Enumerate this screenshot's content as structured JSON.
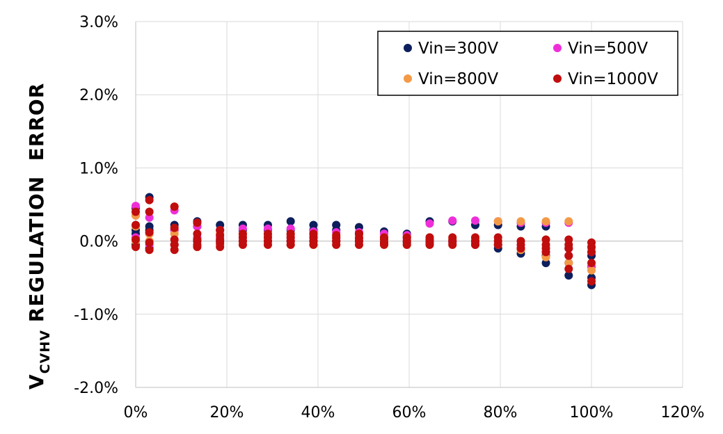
{
  "chart_data": {
    "type": "scatter",
    "ylabel_main": "V",
    "ylabel_sub": "CVHV",
    "ylabel_rest": " REGULATION  ERROR",
    "xlabel": "",
    "xlim": [
      0,
      120
    ],
    "ylim": [
      -2.0,
      3.0
    ],
    "grid": true,
    "legend_position": "top-right",
    "x_ticks": [
      {
        "value": 0,
        "label": "0%"
      },
      {
        "value": 20,
        "label": "20%"
      },
      {
        "value": 40,
        "label": "40%"
      },
      {
        "value": 60,
        "label": "60%"
      },
      {
        "value": 80,
        "label": "80%"
      },
      {
        "value": 100,
        "label": "100%"
      },
      {
        "value": 120,
        "label": "120%"
      }
    ],
    "y_ticks": [
      {
        "value": 3.0,
        "label": "3.0%"
      },
      {
        "value": 2.0,
        "label": "2.0%"
      },
      {
        "value": 1.0,
        "label": "1.0%"
      },
      {
        "value": 0.0,
        "label": "0.0%"
      },
      {
        "value": -1.0,
        "label": "-1.0%"
      },
      {
        "value": -2.0,
        "label": "-2.0%"
      }
    ],
    "series": [
      {
        "name": "Vin=300V",
        "color": "#0d1f5c",
        "points": [
          [
            0,
            0.15
          ],
          [
            0,
            0.1
          ],
          [
            0,
            -0.05
          ],
          [
            0,
            0.45
          ],
          [
            3,
            0.6
          ],
          [
            3,
            0.2
          ],
          [
            3,
            0.15
          ],
          [
            3,
            -0.1
          ],
          [
            8.5,
            0.22
          ],
          [
            8.5,
            0.15
          ],
          [
            8.5,
            -0.05
          ],
          [
            13.5,
            0.27
          ],
          [
            13.5,
            0.2
          ],
          [
            13.5,
            0.0
          ],
          [
            18.5,
            0.22
          ],
          [
            18.5,
            0.15
          ],
          [
            18.5,
            0.0
          ],
          [
            23.5,
            0.22
          ],
          [
            23.5,
            0.15
          ],
          [
            23.5,
            0.0
          ],
          [
            29,
            0.22
          ],
          [
            29,
            0.15
          ],
          [
            29,
            0.0
          ],
          [
            34,
            0.27
          ],
          [
            34,
            0.15
          ],
          [
            34,
            0.0
          ],
          [
            39,
            0.22
          ],
          [
            39,
            0.15
          ],
          [
            39,
            0.0
          ],
          [
            44,
            0.22
          ],
          [
            44,
            0.15
          ],
          [
            44,
            0.0
          ],
          [
            49,
            0.19
          ],
          [
            49,
            0.1
          ],
          [
            49,
            0.0
          ],
          [
            54.5,
            0.13
          ],
          [
            54.5,
            0.05
          ],
          [
            54.5,
            -0.02
          ],
          [
            59.5,
            0.1
          ],
          [
            59.5,
            0.05
          ],
          [
            59.5,
            -0.02
          ],
          [
            64.5,
            0.27
          ],
          [
            64.5,
            0.02
          ],
          [
            64.5,
            -0.02
          ],
          [
            69.5,
            0.27
          ],
          [
            69.5,
            0.02
          ],
          [
            69.5,
            -0.02
          ],
          [
            74.5,
            0.22
          ],
          [
            74.5,
            0.0
          ],
          [
            74.5,
            -0.05
          ],
          [
            79.5,
            0.22
          ],
          [
            79.5,
            -0.05
          ],
          [
            79.5,
            -0.1
          ],
          [
            84.5,
            0.2
          ],
          [
            84.5,
            -0.1
          ],
          [
            84.5,
            -0.17
          ],
          [
            90,
            0.2
          ],
          [
            90,
            -0.2
          ],
          [
            90,
            -0.3
          ],
          [
            95,
            -0.1
          ],
          [
            95,
            -0.3
          ],
          [
            95,
            -0.47
          ],
          [
            100,
            -0.2
          ],
          [
            100,
            -0.35
          ],
          [
            100,
            -0.5
          ],
          [
            100,
            -0.6
          ]
        ]
      },
      {
        "name": "Vin=500V",
        "color": "#ee2fd8",
        "points": [
          [
            0,
            0.48
          ],
          [
            0,
            0.35
          ],
          [
            0,
            0.05
          ],
          [
            3,
            0.32
          ],
          [
            3,
            0.1
          ],
          [
            3,
            -0.05
          ],
          [
            8.5,
            0.42
          ],
          [
            8.5,
            0.15
          ],
          [
            8.5,
            -0.05
          ],
          [
            13.5,
            0.2
          ],
          [
            13.5,
            0.05
          ],
          [
            18.5,
            0.15
          ],
          [
            18.5,
            0.05
          ],
          [
            23.5,
            0.17
          ],
          [
            23.5,
            0.05
          ],
          [
            29,
            0.17
          ],
          [
            29,
            0.05
          ],
          [
            34,
            0.17
          ],
          [
            34,
            0.05
          ],
          [
            39,
            0.13
          ],
          [
            39,
            0.05
          ],
          [
            44,
            0.12
          ],
          [
            44,
            0.05
          ],
          [
            49,
            0.12
          ],
          [
            49,
            0.05
          ],
          [
            54.5,
            0.1
          ],
          [
            54.5,
            0.03
          ],
          [
            59.5,
            0.08
          ],
          [
            59.5,
            0.02
          ],
          [
            64.5,
            0.24
          ],
          [
            64.5,
            0.0
          ],
          [
            69.5,
            0.28
          ],
          [
            69.5,
            0.0
          ],
          [
            74.5,
            0.28
          ],
          [
            74.5,
            -0.02
          ],
          [
            79.5,
            0.27
          ],
          [
            79.5,
            -0.05
          ],
          [
            84.5,
            0.25
          ],
          [
            84.5,
            -0.1
          ],
          [
            90,
            0.25
          ],
          [
            90,
            -0.15
          ],
          [
            95,
            0.25
          ],
          [
            95,
            -0.2
          ],
          [
            100,
            -0.15
          ],
          [
            100,
            -0.35
          ]
        ]
      },
      {
        "name": "Vin=800V",
        "color": "#f39a47",
        "points": [
          [
            0,
            0.35
          ],
          [
            0,
            0.2
          ],
          [
            0,
            0.0
          ],
          [
            3,
            0.1
          ],
          [
            3,
            0.0
          ],
          [
            8.5,
            0.47
          ],
          [
            8.5,
            0.1
          ],
          [
            8.5,
            -0.05
          ],
          [
            13.5,
            0.25
          ],
          [
            13.5,
            -0.05
          ],
          [
            18.5,
            0.1
          ],
          [
            18.5,
            -0.05
          ],
          [
            23.5,
            0.08
          ],
          [
            23.5,
            -0.05
          ],
          [
            29,
            0.08
          ],
          [
            29,
            -0.05
          ],
          [
            34,
            0.08
          ],
          [
            34,
            -0.05
          ],
          [
            39,
            0.08
          ],
          [
            39,
            -0.05
          ],
          [
            44,
            0.06
          ],
          [
            44,
            -0.05
          ],
          [
            49,
            0.06
          ],
          [
            49,
            -0.05
          ],
          [
            54.5,
            0.05
          ],
          [
            54.5,
            -0.05
          ],
          [
            59.5,
            0.05
          ],
          [
            59.5,
            -0.05
          ],
          [
            64.5,
            0.05
          ],
          [
            64.5,
            -0.05
          ],
          [
            69.5,
            0.03
          ],
          [
            69.5,
            -0.05
          ],
          [
            74.5,
            0.03
          ],
          [
            74.5,
            -0.05
          ],
          [
            79.5,
            0.27
          ],
          [
            79.5,
            -0.05
          ],
          [
            84.5,
            0.27
          ],
          [
            84.5,
            -0.12
          ],
          [
            90,
            0.27
          ],
          [
            90,
            -0.22
          ],
          [
            95,
            0.27
          ],
          [
            95,
            -0.3
          ],
          [
            100,
            -0.1
          ],
          [
            100,
            -0.4
          ]
        ]
      },
      {
        "name": "Vin=1000V",
        "color": "#c00d0d",
        "points": [
          [
            0,
            0.4
          ],
          [
            0,
            0.22
          ],
          [
            0,
            0.02
          ],
          [
            0,
            -0.08
          ],
          [
            3,
            0.56
          ],
          [
            3,
            0.4
          ],
          [
            3,
            0.12
          ],
          [
            3,
            -0.02
          ],
          [
            3,
            -0.12
          ],
          [
            8.5,
            0.47
          ],
          [
            8.5,
            0.18
          ],
          [
            8.5,
            0.02
          ],
          [
            8.5,
            -0.05
          ],
          [
            8.5,
            -0.12
          ],
          [
            13.5,
            0.25
          ],
          [
            13.5,
            0.1
          ],
          [
            13.5,
            0.02
          ],
          [
            13.5,
            -0.05
          ],
          [
            13.5,
            -0.08
          ],
          [
            18.5,
            0.15
          ],
          [
            18.5,
            0.08
          ],
          [
            18.5,
            0.02
          ],
          [
            18.5,
            -0.03
          ],
          [
            18.5,
            -0.08
          ],
          [
            23.5,
            0.1
          ],
          [
            23.5,
            0.05
          ],
          [
            23.5,
            0.0
          ],
          [
            23.5,
            -0.05
          ],
          [
            29,
            0.1
          ],
          [
            29,
            0.05
          ],
          [
            29,
            0.0
          ],
          [
            29,
            -0.05
          ],
          [
            34,
            0.1
          ],
          [
            34,
            0.05
          ],
          [
            34,
            0.0
          ],
          [
            34,
            -0.05
          ],
          [
            39,
            0.1
          ],
          [
            39,
            0.05
          ],
          [
            39,
            0.0
          ],
          [
            39,
            -0.05
          ],
          [
            44,
            0.08
          ],
          [
            44,
            0.04
          ],
          [
            44,
            0.0
          ],
          [
            44,
            -0.05
          ],
          [
            49,
            0.1
          ],
          [
            49,
            0.04
          ],
          [
            49,
            0.0
          ],
          [
            49,
            -0.05
          ],
          [
            54.5,
            0.05
          ],
          [
            54.5,
            0.02
          ],
          [
            54.5,
            -0.03
          ],
          [
            54.5,
            -0.05
          ],
          [
            59.5,
            0.05
          ],
          [
            59.5,
            0.0
          ],
          [
            59.5,
            -0.05
          ],
          [
            64.5,
            0.05
          ],
          [
            64.5,
            0.0
          ],
          [
            64.5,
            -0.05
          ],
          [
            69.5,
            0.05
          ],
          [
            69.5,
            0.0
          ],
          [
            69.5,
            -0.05
          ],
          [
            74.5,
            0.05
          ],
          [
            74.5,
            0.0
          ],
          [
            74.5,
            -0.05
          ],
          [
            79.5,
            0.05
          ],
          [
            79.5,
            0.0
          ],
          [
            79.5,
            -0.05
          ],
          [
            84.5,
            0.0
          ],
          [
            84.5,
            -0.05
          ],
          [
            84.5,
            -0.1
          ],
          [
            90,
            0.02
          ],
          [
            90,
            -0.05
          ],
          [
            90,
            -0.1
          ],
          [
            90,
            -0.15
          ],
          [
            95,
            0.02
          ],
          [
            95,
            -0.05
          ],
          [
            95,
            -0.1
          ],
          [
            95,
            -0.2
          ],
          [
            95,
            -0.38
          ],
          [
            100,
            -0.02
          ],
          [
            100,
            -0.08
          ],
          [
            100,
            -0.15
          ],
          [
            100,
            -0.3
          ],
          [
            100,
            -0.55
          ]
        ]
      }
    ]
  }
}
